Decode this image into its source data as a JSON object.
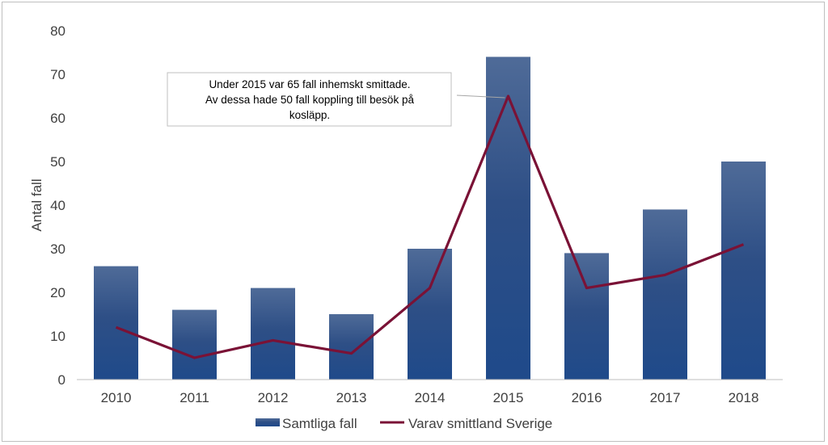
{
  "chart_data": {
    "type": "bar",
    "title": "",
    "xlabel": "",
    "ylabel": "Antal fall",
    "ylim": [
      0,
      80
    ],
    "yticks": [
      0,
      10,
      20,
      30,
      40,
      50,
      60,
      70,
      80
    ],
    "categories": [
      "2010",
      "2011",
      "2012",
      "2013",
      "2014",
      "2015",
      "2016",
      "2017",
      "2018"
    ],
    "series": [
      {
        "name": "Samtliga fall",
        "kind": "bar",
        "color": "#2e4f86",
        "values": [
          26,
          16,
          21,
          15,
          30,
          74,
          29,
          39,
          50
        ]
      },
      {
        "name": "Varav smittland Sverige",
        "kind": "line",
        "color": "#7a1236",
        "values": [
          12,
          5,
          9,
          6,
          21,
          65,
          21,
          24,
          31
        ]
      }
    ],
    "grid": false,
    "legend_position": "bottom",
    "annotation": {
      "lines": [
        "Under 2015 var 65 fall inhemskt smittade.",
        "Av dessa hade 50 fall koppling till besök på",
        "kosläpp."
      ],
      "target_category": "2015",
      "target_value": 65
    }
  }
}
